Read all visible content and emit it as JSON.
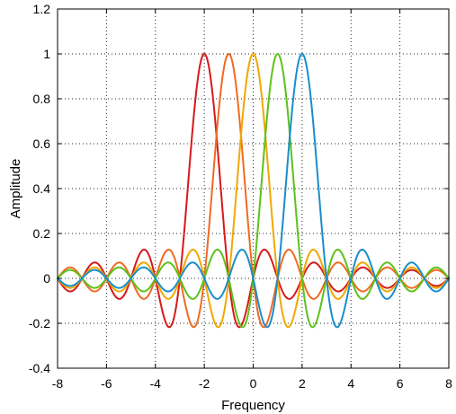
{
  "chart_data": {
    "type": "line",
    "xlabel": "Frequency",
    "ylabel": "Amplitude",
    "xlim": [
      -8,
      8
    ],
    "ylim": [
      -0.4,
      1.2
    ],
    "xticks": [
      -8,
      -6,
      -4,
      -2,
      0,
      2,
      4,
      6,
      8
    ],
    "yticks": [
      -0.4,
      -0.2,
      0,
      0.2,
      0.4,
      0.6,
      0.8,
      1,
      1.2
    ],
    "xtick_labels": [
      "-8",
      "-6",
      "-4",
      "-2",
      "0",
      "2",
      "4",
      "6",
      "8"
    ],
    "ytick_labels": [
      "-0.4",
      "-0.2",
      "0",
      "0.2",
      "0.4",
      "0.6",
      "0.8",
      "1",
      "1.2"
    ],
    "grid": true,
    "function": "sinc(x - center) = sin(pi*(x - center)) / (pi*(x - center))",
    "series": [
      {
        "center": -2,
        "color": "#d7191c"
      },
      {
        "center": -1,
        "color": "#f06a22"
      },
      {
        "center": 0,
        "color": "#f0a800"
      },
      {
        "center": 1,
        "color": "#5cc21a"
      },
      {
        "center": 2,
        "color": "#1a8ecc"
      }
    ]
  }
}
